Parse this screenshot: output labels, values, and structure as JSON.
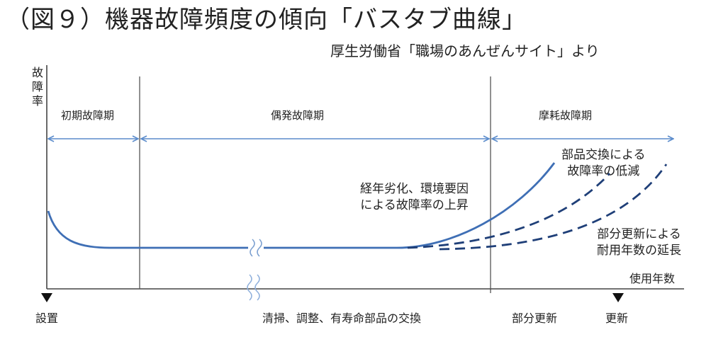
{
  "title": "（図９）機器故障頻度の傾向「バスタブ曲線」",
  "source": "厚生労働省「職場のあんぜんサイト」より",
  "y_axis_label": "故障率",
  "x_axis_label": "使用年数",
  "phases": {
    "initial": "初期故障期",
    "random": "偶発故障期",
    "wearout": "摩耗故障期"
  },
  "annotations": {
    "aging": [
      "経年劣化、環境要因",
      "による故障率の上昇"
    ],
    "parts_replacement": [
      "部品交換による",
      "故障率の低減"
    ],
    "partial_update": [
      "部分更新による",
      "耐用年数の延長"
    ]
  },
  "bottom_labels": {
    "installation": "設置",
    "maintenance": "清掃、調整、有寿命部品の交換",
    "partial_update": "部分更新",
    "renewal": "更新"
  },
  "colors": {
    "curve": "#3f6fb5",
    "dashed": "#1f3f78",
    "arrow": "#5b8ccc",
    "axis": "#444444"
  }
}
